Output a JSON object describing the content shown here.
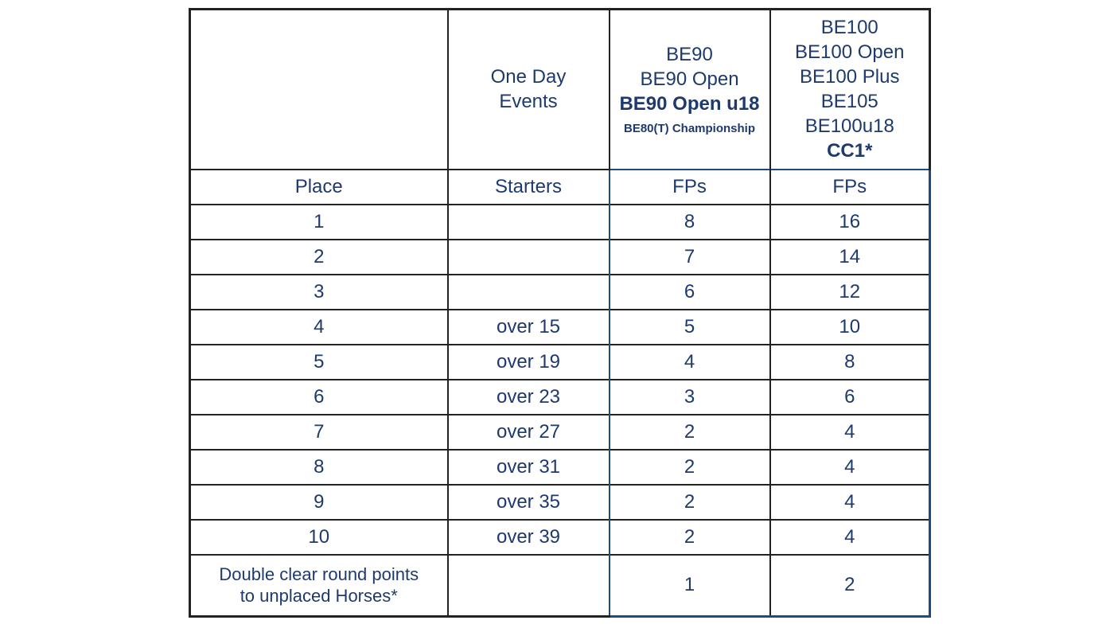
{
  "colors": {
    "text_color": "#1e3a6d",
    "border_dark": "#222222",
    "border_blue": "#204a80"
  },
  "table": {
    "header": {
      "blank": "",
      "one_day_events": [
        "One Day",
        "Events"
      ],
      "be90_group": {
        "lines": [
          "BE90",
          "BE90 Open"
        ],
        "bold": "BE90 Open u18",
        "small": "BE80(T) Championship"
      },
      "be100_group": {
        "lines": [
          "BE100",
          "BE100 Open",
          "BE100 Plus",
          "BE105",
          "BE100u18"
        ],
        "bold": "CC1*"
      }
    },
    "subheader": {
      "place": "Place",
      "starters": "Starters",
      "fps90": "FPs",
      "fps100": "FPs"
    },
    "rows": [
      {
        "place": "1",
        "starters": "",
        "fp90": "8",
        "fp100": "16"
      },
      {
        "place": "2",
        "starters": "",
        "fp90": "7",
        "fp100": "14"
      },
      {
        "place": "3",
        "starters": "",
        "fp90": "6",
        "fp100": "12"
      },
      {
        "place": "4",
        "starters": "over 15",
        "fp90": "5",
        "fp100": "10"
      },
      {
        "place": "5",
        "starters": "over 19",
        "fp90": "4",
        "fp100": "8"
      },
      {
        "place": "6",
        "starters": "over 23",
        "fp90": "3",
        "fp100": "6"
      },
      {
        "place": "7",
        "starters": "over 27",
        "fp90": "2",
        "fp100": "4"
      },
      {
        "place": "8",
        "starters": "over 31",
        "fp90": "2",
        "fp100": "4"
      },
      {
        "place": "9",
        "starters": "over 35",
        "fp90": "2",
        "fp100": "4"
      },
      {
        "place": "10",
        "starters": "over 39",
        "fp90": "2",
        "fp100": "4"
      }
    ],
    "footer": {
      "label": [
        "Double clear round points",
        "to unplaced Horses*"
      ],
      "fp90": "1",
      "fp100": "2"
    }
  }
}
